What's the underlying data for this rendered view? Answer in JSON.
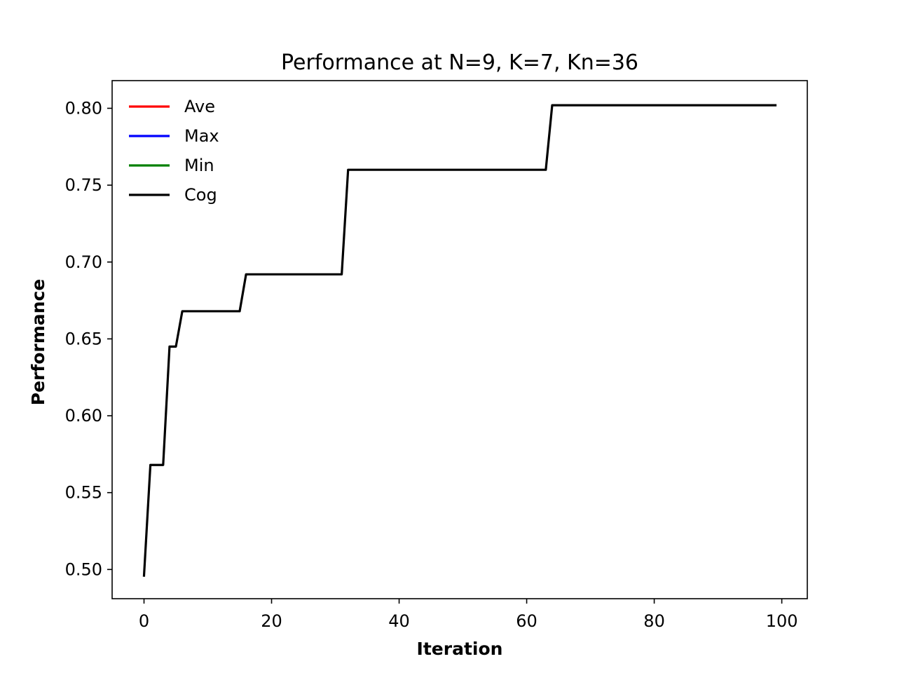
{
  "chart_data": {
    "type": "line",
    "title": "Performance at N=9, K=7, Kn=36",
    "xlabel": "Iteration",
    "ylabel": "Performance",
    "xlim": [
      -5,
      104
    ],
    "ylim": [
      0.481,
      0.818
    ],
    "xticks": [
      0,
      20,
      40,
      60,
      80,
      100
    ],
    "xtick_labels": [
      "0",
      "20",
      "40",
      "60",
      "80",
      "100"
    ],
    "yticks": [
      0.5,
      0.55,
      0.6,
      0.65,
      0.7,
      0.75,
      0.8
    ],
    "ytick_labels": [
      "0.50",
      "0.55",
      "0.60",
      "0.65",
      "0.70",
      "0.75",
      "0.80"
    ],
    "grid": false,
    "legend": {
      "placement": "top-left",
      "frame": false,
      "entries": [
        {
          "label": "Ave",
          "color": "#ff0000"
        },
        {
          "label": "Max",
          "color": "#0000ff"
        },
        {
          "label": "Min",
          "color": "#008000"
        },
        {
          "label": "Cog",
          "color": "#000000"
        }
      ]
    },
    "series": [
      {
        "name": "Cog",
        "color": "#000000",
        "points": [
          [
            0,
            0.496
          ],
          [
            1,
            0.568
          ],
          [
            3,
            0.568
          ],
          [
            4,
            0.645
          ],
          [
            5,
            0.645
          ],
          [
            6,
            0.668
          ],
          [
            15,
            0.668
          ],
          [
            16,
            0.692
          ],
          [
            31,
            0.692
          ],
          [
            32,
            0.76
          ],
          [
            63,
            0.76
          ],
          [
            64,
            0.802
          ],
          [
            99,
            0.802
          ]
        ]
      }
    ]
  }
}
